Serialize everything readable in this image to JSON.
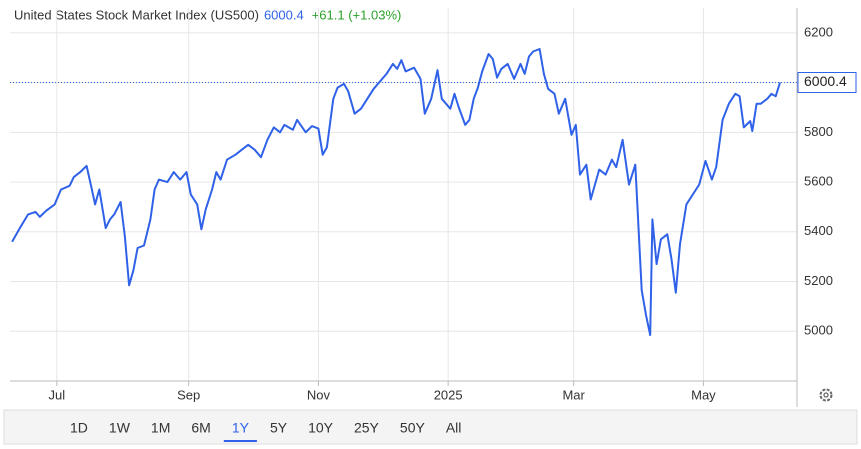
{
  "chart_data": {
    "type": "line",
    "title": "United States Stock Market Index (US500)",
    "last": 6000.4,
    "change_label": "+61.1 (+1.03%)",
    "x": [
      161,
      165,
      168.5,
      172,
      174,
      177,
      181,
      184,
      188,
      190,
      193,
      196,
      198,
      200,
      202,
      205,
      207,
      209,
      212,
      214,
      216,
      218,
      220,
      223,
      226,
      228,
      230,
      234,
      237,
      240,
      243,
      245,
      248,
      250,
      252,
      255,
      257,
      259,
      262,
      266,
      269,
      272,
      275,
      278,
      281,
      284,
      287,
      289,
      293,
      295,
      299,
      302,
      305,
      307,
      309,
      312,
      314,
      317,
      319,
      322,
      325,
      328,
      331,
      335,
      337,
      340,
      342,
      344,
      346,
      350,
      353,
      355,
      358,
      361,
      363,
      367,
      369,
      371,
      374,
      376,
      378,
      380,
      382,
      385,
      387,
      389,
      391,
      394,
      397,
      400,
      402,
      404,
      406,
      409,
      411,
      413,
      416,
      418,
      421,
      424,
      426,
      428,
      431,
      433,
      437,
      440,
      443,
      445,
      448,
      451,
      454,
      457,
      459,
      461,
      462,
      464,
      466,
      469,
      471,
      473,
      475,
      478,
      481,
      484,
      487,
      490,
      492,
      495,
      498,
      501,
      503,
      505,
      508,
      509,
      511,
      513,
      516,
      518,
      520,
      522
    ],
    "series": [
      {
        "name": "US500",
        "color": "#2f62e8",
        "values": [
          5360,
          5420,
          5470,
          5480,
          5460,
          5485,
          5510,
          5570,
          5585,
          5620,
          5640,
          5665,
          5590,
          5510,
          5570,
          5415,
          5450,
          5470,
          5520,
          5380,
          5185,
          5245,
          5335,
          5345,
          5450,
          5570,
          5610,
          5600,
          5640,
          5610,
          5640,
          5550,
          5510,
          5410,
          5490,
          5570,
          5640,
          5610,
          5690,
          5710,
          5730,
          5750,
          5730,
          5700,
          5770,
          5820,
          5800,
          5830,
          5810,
          5850,
          5800,
          5825,
          5815,
          5710,
          5740,
          5935,
          5980,
          5995,
          5965,
          5875,
          5895,
          5935,
          5975,
          6015,
          6035,
          6075,
          6055,
          6090,
          6045,
          6060,
          6015,
          5875,
          5935,
          6050,
          5935,
          5895,
          5955,
          5900,
          5830,
          5850,
          5935,
          5980,
          6045,
          6115,
          6095,
          6020,
          6055,
          6075,
          6015,
          6075,
          6035,
          6105,
          6125,
          6135,
          6035,
          5975,
          5955,
          5875,
          5935,
          5790,
          5830,
          5630,
          5670,
          5530,
          5650,
          5630,
          5690,
          5660,
          5770,
          5590,
          5670,
          5165,
          5065,
          4985,
          5450,
          5270,
          5370,
          5390,
          5290,
          5155,
          5350,
          5510,
          5550,
          5590,
          5685,
          5610,
          5660,
          5850,
          5915,
          5955,
          5945,
          5820,
          5845,
          5805,
          5915,
          5915,
          5935,
          5955,
          5945,
          6000.4
        ]
      }
    ],
    "xlim": [
      160,
      530
    ],
    "xticks": [
      {
        "value": 182,
        "label": "Jul"
      },
      {
        "value": 244,
        "label": "Sep"
      },
      {
        "value": 305,
        "label": "Nov"
      },
      {
        "value": 366,
        "label": "2025"
      },
      {
        "value": 425,
        "label": "Mar"
      },
      {
        "value": 486,
        "label": "May"
      }
    ],
    "ylim": [
      4800,
      6300
    ],
    "yticks": [
      5000,
      5200,
      5400,
      5600,
      5800,
      6000,
      6200
    ],
    "grid": true,
    "ranges": [
      "1D",
      "1W",
      "1M",
      "6M",
      "1Y",
      "5Y",
      "10Y",
      "25Y",
      "50Y",
      "All"
    ],
    "active_range": 4
  }
}
